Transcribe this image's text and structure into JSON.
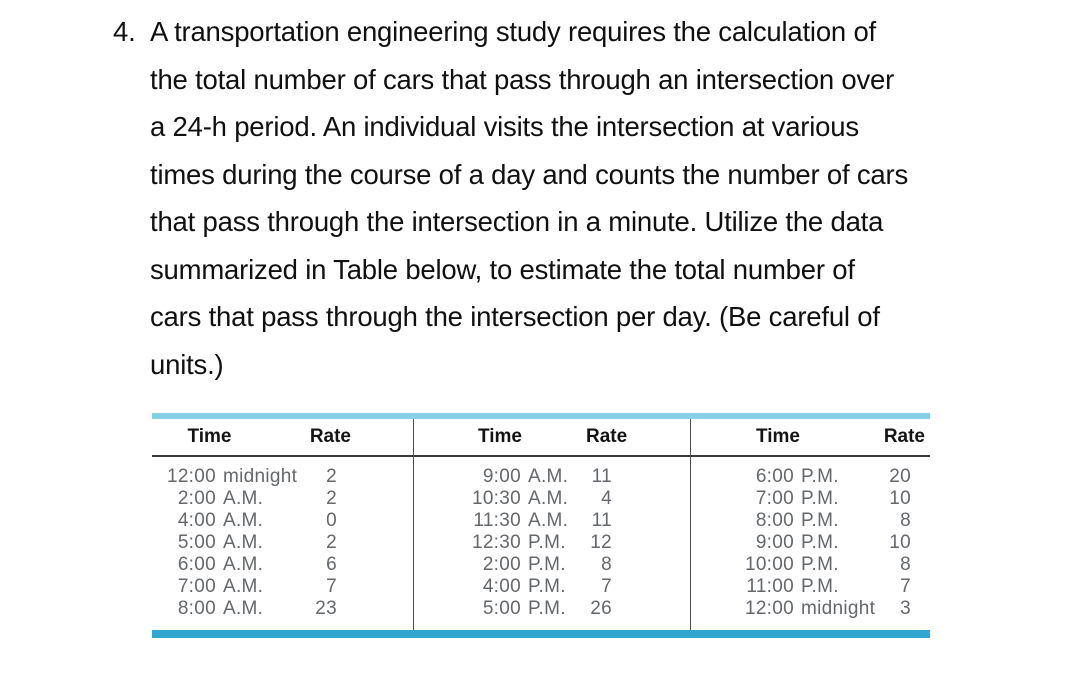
{
  "problem": {
    "number": "4.",
    "lines": [
      "A transportation engineering study requires the calculation of",
      "the total number of cars that pass through an intersection over",
      "a 24-h period. An individual visits the intersection at various",
      "times during the course of a day and counts the number of cars",
      "that pass through the intersection in a minute. Utilize the data",
      "summarized in Table below, to estimate the total number of",
      "cars that pass through the intersection per day. (Be careful of",
      "units.)"
    ]
  },
  "table": {
    "accent_top_color": "#85CFE9",
    "accent_bottom_color": "#2FA7CE",
    "groups": [
      {
        "headers": {
          "time": "Time",
          "rate": "Rate"
        },
        "rows": [
          {
            "time": "12:00",
            "suffix": "midnight",
            "rate": "2"
          },
          {
            "time": "2:00",
            "suffix": "A.M.",
            "rate": "2"
          },
          {
            "time": "4:00",
            "suffix": "A.M.",
            "rate": "0"
          },
          {
            "time": "5:00",
            "suffix": "A.M.",
            "rate": "2"
          },
          {
            "time": "6:00",
            "suffix": "A.M.",
            "rate": "6"
          },
          {
            "time": "7:00",
            "suffix": "A.M.",
            "rate": "7"
          },
          {
            "time": "8:00",
            "suffix": "A.M.",
            "rate": "23"
          }
        ]
      },
      {
        "headers": {
          "time": "Time",
          "rate": "Rate"
        },
        "rows": [
          {
            "time": "9:00",
            "suffix": "A.M.",
            "rate": "11"
          },
          {
            "time": "10:30",
            "suffix": "A.M.",
            "rate": "4"
          },
          {
            "time": "11:30",
            "suffix": "A.M.",
            "rate": "11"
          },
          {
            "time": "12:30",
            "suffix": "P.M.",
            "rate": "12"
          },
          {
            "time": "2:00",
            "suffix": "P.M.",
            "rate": "8"
          },
          {
            "time": "4:00",
            "suffix": "P.M.",
            "rate": "7"
          },
          {
            "time": "5:00",
            "suffix": "P.M.",
            "rate": "26"
          }
        ]
      },
      {
        "headers": {
          "time": "Time",
          "rate": "Rate"
        },
        "rows": [
          {
            "time": "6:00",
            "suffix": "P.M.",
            "rate": "20"
          },
          {
            "time": "7:00",
            "suffix": "P.M.",
            "rate": "10"
          },
          {
            "time": "8:00",
            "suffix": "P.M.",
            "rate": "8"
          },
          {
            "time": "9:00",
            "suffix": "P.M.",
            "rate": "10"
          },
          {
            "time": "10:00",
            "suffix": "P.M.",
            "rate": "8"
          },
          {
            "time": "11:00",
            "suffix": "P.M.",
            "rate": "7"
          },
          {
            "time": "12:00",
            "suffix": "midnight",
            "rate": "3"
          }
        ]
      }
    ]
  }
}
